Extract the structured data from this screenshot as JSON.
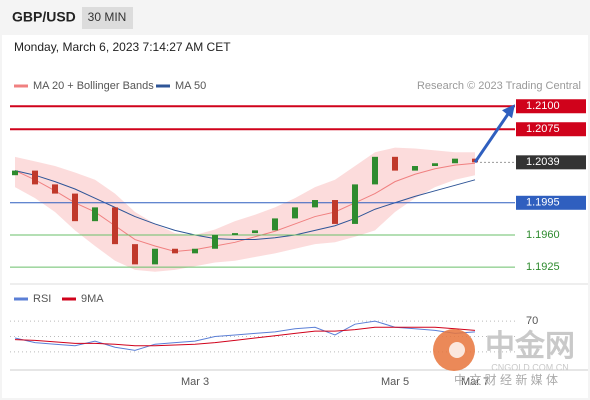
{
  "header": {
    "symbol": "GBP/USD",
    "interval": "30 MIN",
    "timestamp": "Monday, March 6, 2023 7:14:27 AM CET"
  },
  "chart_data": {
    "type": "candlestick",
    "legend": {
      "ma20": "MA 20 + Bollinger Bands",
      "ma50": "MA 50",
      "credit": "Research © 2023 Trading Central"
    },
    "categories": [
      null,
      null,
      null,
      null,
      null,
      null,
      null,
      null,
      null,
      "Mar 3",
      null,
      null,
      null,
      null,
      null,
      null,
      null,
      null,
      null,
      "Mar 5",
      null,
      null,
      null,
      "Mar 7"
    ],
    "open": [
      1.2025,
      1.203,
      1.2015,
      1.2005,
      1.1975,
      1.199,
      1.195,
      1.1928,
      1.1945,
      1.194,
      1.1945,
      1.196,
      1.1962,
      1.1965,
      1.1978,
      1.199,
      1.1998,
      1.1972,
      1.2015,
      1.2045,
      1.203,
      1.2035,
      1.2038,
      1.2043
    ],
    "close": [
      1.203,
      1.2015,
      1.2005,
      1.1975,
      1.199,
      1.195,
      1.1928,
      1.1945,
      1.194,
      1.1945,
      1.196,
      1.1962,
      1.1965,
      1.1978,
      1.199,
      1.1998,
      1.1972,
      1.2015,
      1.2045,
      1.203,
      1.2035,
      1.2038,
      1.2043,
      1.2039
    ],
    "up_color": "#2e8b2e",
    "down_color": "#c0392b",
    "ma20": {
      "name": "MA 20",
      "color": "#f08080",
      "values": [
        1.203,
        1.202,
        1.2008,
        1.1995,
        1.1985,
        1.197,
        1.1955,
        1.1948,
        1.1942,
        1.1944,
        1.1948,
        1.1952,
        1.1958,
        1.1964,
        1.1972,
        1.198,
        1.1985,
        1.1995,
        1.2005,
        1.2018,
        1.2026,
        1.2032,
        1.2036,
        1.2038
      ]
    },
    "bb_upper": [
      1.2045,
      1.204,
      1.2035,
      1.2028,
      1.202,
      1.2005,
      1.1985,
      1.1972,
      1.1962,
      1.196,
      1.1966,
      1.1975,
      1.1982,
      1.199,
      1.2,
      1.2012,
      1.202,
      1.2035,
      1.205,
      1.2055,
      1.2054,
      1.2052,
      1.205,
      1.205
    ],
    "bb_lower": [
      1.2012,
      1.2,
      1.1985,
      1.1965,
      1.1948,
      1.1932,
      1.1922,
      1.192,
      1.1922,
      1.1926,
      1.193,
      1.1932,
      1.1936,
      1.194,
      1.1945,
      1.195,
      1.1952,
      1.1958,
      1.1965,
      1.1985,
      1.2,
      1.2012,
      1.202,
      1.2025
    ],
    "bb_color": "#fbd3d3",
    "ma50": {
      "name": "MA 50",
      "color": "#2f5597",
      "values": [
        1.203,
        1.2025,
        1.2018,
        1.201,
        1.2,
        1.199,
        1.198,
        1.1972,
        1.1965,
        1.196,
        1.1956,
        1.1955,
        1.1955,
        1.1957,
        1.196,
        1.1965,
        1.197,
        1.1978,
        1.1988,
        1.1995,
        1.2002,
        1.2008,
        1.2014,
        1.202
      ]
    },
    "ylim": [
      1.1911,
      1.2134
    ],
    "levels": [
      {
        "value": 1.21,
        "label": "1.2100",
        "color": "#d0021b",
        "kind": "box"
      },
      {
        "value": 1.2075,
        "label": "1.2075",
        "color": "#d0021b",
        "kind": "box"
      },
      {
        "value": 1.2039,
        "label": "1.2039",
        "color": "#333333",
        "kind": "current"
      },
      {
        "value": 1.1995,
        "label": "1.1995",
        "color": "#2f5fbf",
        "kind": "box"
      },
      {
        "value": 1.196,
        "label": "1.1960",
        "color": "#6abf6a",
        "kind": "text"
      },
      {
        "value": 1.1925,
        "label": "1.1925",
        "color": "#6abf6a",
        "kind": "text"
      }
    ],
    "arrow_color": "#2f5fbf",
    "rsi": {
      "name": "RSI",
      "color": "#5b7fd6",
      "values": [
        48,
        42,
        40,
        38,
        44,
        36,
        32,
        40,
        42,
        44,
        50,
        52,
        54,
        56,
        60,
        62,
        52,
        66,
        70,
        62,
        60,
        58,
        54,
        56
      ]
    },
    "rsi_ma": {
      "name": "9MA",
      "color": "#d0021b",
      "values": [
        46,
        45,
        43,
        41,
        41,
        40,
        38,
        38,
        39,
        40,
        42,
        45,
        48,
        51,
        54,
        57,
        57,
        59,
        62,
        62,
        62,
        62,
        60,
        58
      ]
    },
    "rsi_ylim": [
      0,
      100
    ],
    "rsi_yticks": [
      70
    ],
    "rsi_grid": [
      50,
      30
    ]
  },
  "watermark": {
    "name": "中金网",
    "url": "CNGOLD.COM.CN",
    "slogan": "中 文 财 经 新 媒 体"
  }
}
